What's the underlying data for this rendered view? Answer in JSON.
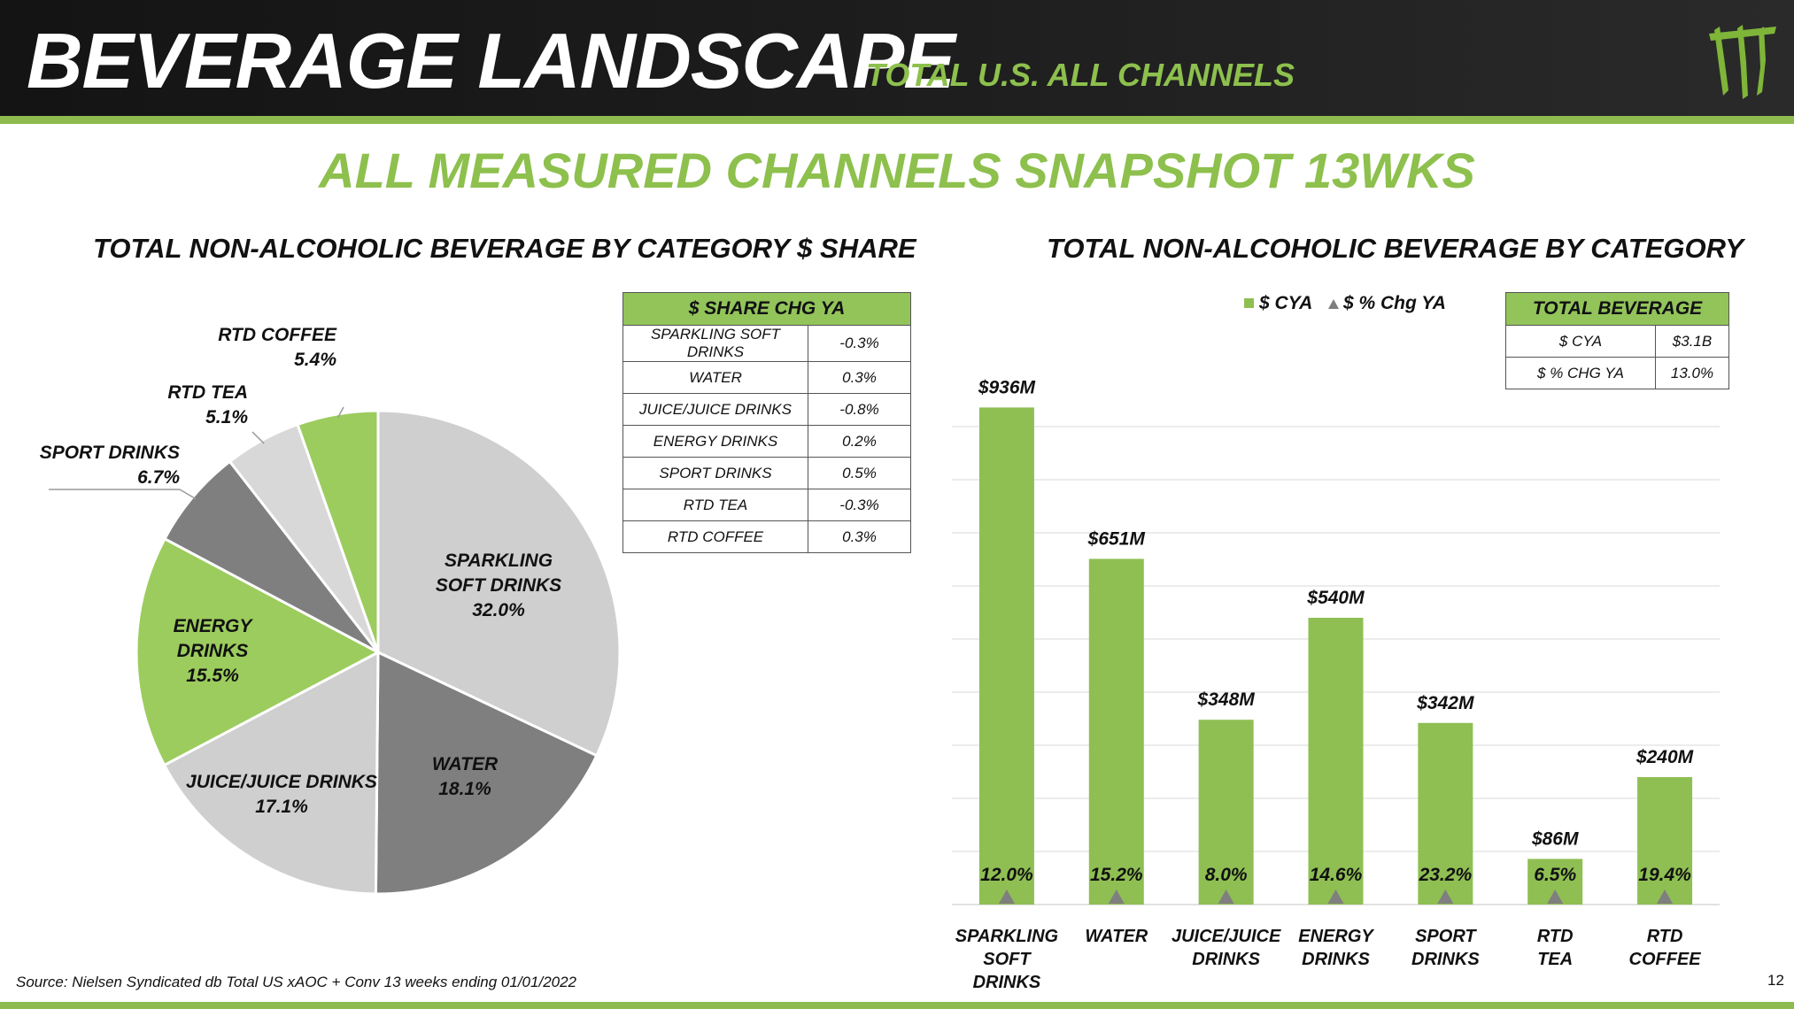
{
  "header": {
    "title": "BEVERAGE LANDSCAPE",
    "subtitle": "TOTAL U.S. ALL CHANNELS",
    "logo_icon": "monster-claw-logo-icon"
  },
  "headline": "ALL MEASURED CHANNELS SNAPSHOT 13WKS",
  "share_table": {
    "header": "$ SHARE CHG YA",
    "rows": [
      {
        "category": "SPARKLING SOFT DRINKS",
        "value": "-0.3%"
      },
      {
        "category": "WATER",
        "value": "0.3%"
      },
      {
        "category": "JUICE/JUICE DRINKS",
        "value": "-0.8%"
      },
      {
        "category": "ENERGY DRINKS",
        "value": "0.2%"
      },
      {
        "category": "SPORT DRINKS",
        "value": "0.5%"
      },
      {
        "category": "RTD TEA",
        "value": "-0.3%"
      },
      {
        "category": "RTD COFFEE",
        "value": "0.3%"
      }
    ]
  },
  "total_table": {
    "header": "TOTAL BEVERAGE",
    "rows": [
      {
        "label": "$ CYA",
        "value": "$3.1B"
      },
      {
        "label": "$ % CHG YA",
        "value": "13.0%"
      }
    ]
  },
  "chart_data": [
    {
      "type": "pie",
      "title": "TOTAL NON-ALCOHOLIC BEVERAGE BY CATEGORY $ SHARE",
      "slices": [
        {
          "name": "SPARKLING SOFT DRINKS",
          "label_lines": [
            "SPARKLING",
            "SOFT DRINKS"
          ],
          "value": 32.0,
          "value_label": "32.0%",
          "color": "#d0cfd0"
        },
        {
          "name": "WATER",
          "label_lines": [
            "WATER"
          ],
          "value": 18.1,
          "value_label": "18.1%",
          "color": "#7f7f7f"
        },
        {
          "name": "JUICE/JUICE DRINKS",
          "label_lines": [
            "JUICE/JUICE DRINKS"
          ],
          "value": 17.1,
          "value_label": "17.1%",
          "color": "#d0cfd0"
        },
        {
          "name": "ENERGY DRINKS",
          "label_lines": [
            "ENERGY",
            "DRINKS"
          ],
          "value": 15.5,
          "value_label": "15.5%",
          "color": "#9ccc5e"
        },
        {
          "name": "SPORT DRINKS",
          "label_lines": [
            "SPORT DRINKS"
          ],
          "value": 6.7,
          "value_label": "6.7%",
          "color": "#7f7f7f"
        },
        {
          "name": "RTD TEA",
          "label_lines": [
            "RTD TEA"
          ],
          "value": 5.1,
          "value_label": "5.1%",
          "color": "#d9d8d9"
        },
        {
          "name": "RTD COFFEE",
          "label_lines": [
            "RTD COFFEE"
          ],
          "value": 5.4,
          "value_label": "5.4%",
          "color": "#9ccc5e"
        }
      ]
    },
    {
      "type": "bar",
      "title": "TOTAL NON-ALCOHOLIC BEVERAGE BY CATEGORY",
      "legend": [
        {
          "name": "$ CYA",
          "marker": "square",
          "color": "#8fbf53"
        },
        {
          "name": "$ % Chg YA",
          "marker": "triangle",
          "color": "#7f7f7f"
        }
      ],
      "categories": [
        {
          "name": "SPARKLING SOFT DRINKS",
          "label_lines": [
            "SPARKLING",
            "SOFT",
            "DRINKS"
          ]
        },
        {
          "name": "WATER",
          "label_lines": [
            "WATER"
          ]
        },
        {
          "name": "JUICE/JUICE DRINKS",
          "label_lines": [
            "JUICE/JUICE",
            "DRINKS"
          ]
        },
        {
          "name": "ENERGY DRINKS",
          "label_lines": [
            "ENERGY",
            "DRINKS"
          ]
        },
        {
          "name": "SPORT DRINKS",
          "label_lines": [
            "SPORT",
            "DRINKS"
          ]
        },
        {
          "name": "RTD TEA",
          "label_lines": [
            "RTD",
            "TEA"
          ]
        },
        {
          "name": "RTD COFFEE",
          "label_lines": [
            "RTD",
            "COFFEE"
          ]
        }
      ],
      "series": [
        {
          "name": "$ CYA",
          "values": [
            936,
            651,
            348,
            540,
            342,
            86,
            240
          ],
          "labels": [
            "$936M",
            "$651M",
            "$348M",
            "$540M",
            "$342M",
            "$86M",
            "$240M"
          ]
        },
        {
          "name": "$ % Chg YA",
          "values": [
            12.0,
            15.2,
            8.0,
            14.6,
            23.2,
            6.5,
            19.4
          ],
          "labels": [
            "12.0%",
            "15.2%",
            "8.0%",
            "14.6%",
            "23.2%",
            "6.5%",
            "19.4%"
          ]
        }
      ],
      "ylim": [
        0,
        1000
      ],
      "grid": true
    }
  ],
  "source": "Source: Nielsen Syndicated db Total US xAOC + Conv 13 weeks ending 01/01/2022",
  "page_number": "12"
}
